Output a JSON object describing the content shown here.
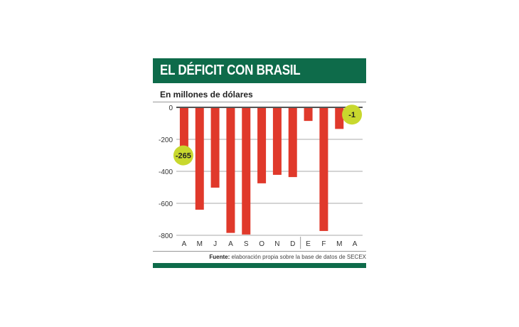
{
  "title": "EL DÉFICIT CON BRASIL",
  "subtitle": "En millones de dólares",
  "source_label": "Fuente:",
  "source_text": "elaboración propia sobre la base de datos de SECEX",
  "colors": {
    "header": "#0e6b4a",
    "bar": "#e0392b",
    "highlight": "#c8d82e"
  },
  "chart_data": {
    "type": "bar",
    "categories": [
      "A",
      "M",
      "J",
      "A",
      "S",
      "O",
      "N",
      "D",
      "E",
      "F",
      "M",
      "A"
    ],
    "values": [
      -265,
      -640,
      -502,
      -785,
      -795,
      -475,
      -422,
      -436,
      -85,
      -773,
      -135,
      -1
    ],
    "data_labels": [
      {
        "index": 0,
        "text": "-265"
      },
      {
        "index": 11,
        "text": "-1"
      }
    ],
    "yticks": [
      "0",
      "-200",
      "-400",
      "-600",
      "-800"
    ],
    "ylim": [
      -800,
      0
    ],
    "grid": true,
    "year_divider_after_index": 7
  }
}
